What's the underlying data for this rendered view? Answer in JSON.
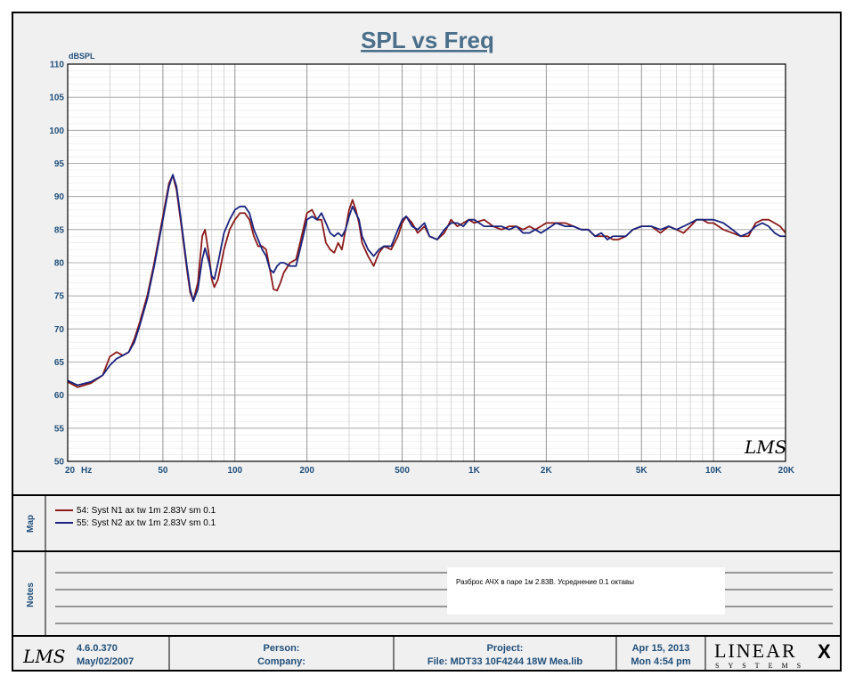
{
  "chart_data": {
    "type": "line",
    "title": "SPL vs Freq",
    "ylabel": "dBSPL",
    "xlabel": "Hz",
    "x_scale": "log",
    "xlim": [
      20,
      20000
    ],
    "ylim": [
      50,
      110
    ],
    "y_ticks": [
      50,
      55,
      60,
      65,
      70,
      75,
      80,
      85,
      90,
      95,
      100,
      105,
      110
    ],
    "x_ticks": [
      {
        "value": 20,
        "label": "20"
      },
      {
        "value": 50,
        "label": "50"
      },
      {
        "value": 100,
        "label": "100"
      },
      {
        "value": 200,
        "label": "200"
      },
      {
        "value": 500,
        "label": "500"
      },
      {
        "value": 1000,
        "label": "1K"
      },
      {
        "value": 2000,
        "label": "2K"
      },
      {
        "value": 5000,
        "label": "5K"
      },
      {
        "value": 10000,
        "label": "10K"
      },
      {
        "value": 20000,
        "label": "20K"
      }
    ],
    "grid": true,
    "legend_position": "bottom",
    "series": [
      {
        "name": "54: Syst N1 ax tw 1m 2.83V sm 0.1",
        "color": "#8b1a1a",
        "points": [
          [
            20,
            62.0
          ],
          [
            22,
            61.2
          ],
          [
            25,
            61.8
          ],
          [
            28,
            63.0
          ],
          [
            30,
            65.8
          ],
          [
            32,
            66.5
          ],
          [
            34,
            66.0
          ],
          [
            36,
            66.5
          ],
          [
            38,
            68.5
          ],
          [
            40,
            71.0
          ],
          [
            43,
            75.0
          ],
          [
            46,
            80.0
          ],
          [
            50,
            87.0
          ],
          [
            53,
            92.0
          ],
          [
            55,
            93.2
          ],
          [
            57,
            91.0
          ],
          [
            60,
            85.0
          ],
          [
            63,
            79.0
          ],
          [
            65,
            75.5
          ],
          [
            67,
            74.3
          ],
          [
            70,
            77.0
          ],
          [
            73,
            84.0
          ],
          [
            75,
            85.0
          ],
          [
            78,
            81.0
          ],
          [
            80,
            77.5
          ],
          [
            82,
            76.3
          ],
          [
            85,
            77.5
          ],
          [
            90,
            82.0
          ],
          [
            95,
            85.0
          ],
          [
            100,
            86.5
          ],
          [
            105,
            87.5
          ],
          [
            110,
            87.5
          ],
          [
            115,
            86.5
          ],
          [
            120,
            84.0
          ],
          [
            125,
            82.5
          ],
          [
            130,
            82.5
          ],
          [
            135,
            82.0
          ],
          [
            140,
            79.0
          ],
          [
            145,
            76.0
          ],
          [
            150,
            75.8
          ],
          [
            155,
            77.0
          ],
          [
            160,
            78.5
          ],
          [
            170,
            80.0
          ],
          [
            180,
            80.5
          ],
          [
            190,
            84.0
          ],
          [
            200,
            87.5
          ],
          [
            210,
            88.0
          ],
          [
            220,
            86.5
          ],
          [
            230,
            86.5
          ],
          [
            240,
            83.0
          ],
          [
            250,
            82.0
          ],
          [
            260,
            81.5
          ],
          [
            270,
            83.0
          ],
          [
            280,
            82.0
          ],
          [
            290,
            85.0
          ],
          [
            300,
            88.0
          ],
          [
            310,
            89.5
          ],
          [
            320,
            88.0
          ],
          [
            330,
            86.0
          ],
          [
            340,
            83.0
          ],
          [
            360,
            81.0
          ],
          [
            380,
            79.5
          ],
          [
            400,
            81.5
          ],
          [
            420,
            82.5
          ],
          [
            450,
            82.0
          ],
          [
            480,
            84.0
          ],
          [
            500,
            86.0
          ],
          [
            520,
            87.0
          ],
          [
            550,
            86.0
          ],
          [
            580,
            84.5
          ],
          [
            620,
            85.5
          ],
          [
            650,
            84.0
          ],
          [
            700,
            83.5
          ],
          [
            750,
            84.5
          ],
          [
            800,
            86.5
          ],
          [
            850,
            85.5
          ],
          [
            900,
            86.0
          ],
          [
            950,
            86.5
          ],
          [
            1000,
            86.0
          ],
          [
            1100,
            86.5
          ],
          [
            1200,
            85.5
          ],
          [
            1300,
            85.0
          ],
          [
            1400,
            85.5
          ],
          [
            1500,
            85.5
          ],
          [
            1600,
            85.0
          ],
          [
            1700,
            85.5
          ],
          [
            1800,
            85.0
          ],
          [
            1900,
            85.5
          ],
          [
            2000,
            86.0
          ],
          [
            2200,
            86.0
          ],
          [
            2400,
            86.0
          ],
          [
            2600,
            85.5
          ],
          [
            2800,
            85.0
          ],
          [
            3000,
            85.0
          ],
          [
            3200,
            84.0
          ],
          [
            3400,
            84.0
          ],
          [
            3600,
            84.0
          ],
          [
            3800,
            83.5
          ],
          [
            4000,
            83.5
          ],
          [
            4300,
            84.0
          ],
          [
            4600,
            85.0
          ],
          [
            5000,
            85.5
          ],
          [
            5500,
            85.5
          ],
          [
            6000,
            84.5
          ],
          [
            6500,
            85.5
          ],
          [
            7000,
            85.0
          ],
          [
            7500,
            84.5
          ],
          [
            8000,
            85.5
          ],
          [
            8500,
            86.5
          ],
          [
            9000,
            86.5
          ],
          [
            9500,
            86.0
          ],
          [
            10000,
            86.0
          ],
          [
            11000,
            85.0
          ],
          [
            12000,
            84.5
          ],
          [
            13000,
            84.0
          ],
          [
            14000,
            84.0
          ],
          [
            15000,
            86.0
          ],
          [
            16000,
            86.5
          ],
          [
            17000,
            86.5
          ],
          [
            18000,
            86.0
          ],
          [
            19000,
            85.5
          ],
          [
            20000,
            84.5
          ]
        ]
      },
      {
        "name": "55: Syst N2 ax tw 1m 2.83V sm 0.1",
        "color": "#1a237e",
        "points": [
          [
            20,
            62.2
          ],
          [
            22,
            61.5
          ],
          [
            25,
            62.0
          ],
          [
            28,
            63.0
          ],
          [
            30,
            64.5
          ],
          [
            32,
            65.5
          ],
          [
            34,
            66.0
          ],
          [
            36,
            66.5
          ],
          [
            38,
            68.0
          ],
          [
            40,
            70.5
          ],
          [
            43,
            74.5
          ],
          [
            46,
            79.5
          ],
          [
            50,
            86.5
          ],
          [
            53,
            91.5
          ],
          [
            55,
            93.3
          ],
          [
            57,
            91.5
          ],
          [
            60,
            85.5
          ],
          [
            63,
            79.5
          ],
          [
            65,
            76.0
          ],
          [
            67,
            74.2
          ],
          [
            70,
            76.0
          ],
          [
            73,
            80.5
          ],
          [
            75,
            82.2
          ],
          [
            78,
            80.0
          ],
          [
            80,
            78.0
          ],
          [
            82,
            77.5
          ],
          [
            85,
            80.0
          ],
          [
            90,
            84.5
          ],
          [
            95,
            86.5
          ],
          [
            100,
            88.0
          ],
          [
            105,
            88.5
          ],
          [
            110,
            88.5
          ],
          [
            115,
            87.5
          ],
          [
            120,
            85.0
          ],
          [
            125,
            83.5
          ],
          [
            130,
            82.0
          ],
          [
            135,
            81.0
          ],
          [
            140,
            79.0
          ],
          [
            145,
            78.5
          ],
          [
            150,
            79.5
          ],
          [
            155,
            80.0
          ],
          [
            160,
            80.0
          ],
          [
            170,
            79.5
          ],
          [
            180,
            79.5
          ],
          [
            190,
            83.0
          ],
          [
            200,
            86.5
          ],
          [
            210,
            87.0
          ],
          [
            220,
            86.5
          ],
          [
            230,
            87.5
          ],
          [
            240,
            86.0
          ],
          [
            250,
            84.5
          ],
          [
            260,
            84.0
          ],
          [
            270,
            84.5
          ],
          [
            280,
            84.0
          ],
          [
            290,
            85.0
          ],
          [
            300,
            87.0
          ],
          [
            310,
            88.5
          ],
          [
            320,
            87.5
          ],
          [
            330,
            86.5
          ],
          [
            340,
            84.0
          ],
          [
            360,
            82.0
          ],
          [
            380,
            81.0
          ],
          [
            400,
            82.0
          ],
          [
            420,
            82.5
          ],
          [
            450,
            82.5
          ],
          [
            480,
            85.0
          ],
          [
            500,
            86.5
          ],
          [
            520,
            87.0
          ],
          [
            550,
            85.5
          ],
          [
            580,
            85.0
          ],
          [
            620,
            86.0
          ],
          [
            650,
            84.0
          ],
          [
            700,
            83.5
          ],
          [
            750,
            85.0
          ],
          [
            800,
            86.0
          ],
          [
            850,
            86.0
          ],
          [
            900,
            85.5
          ],
          [
            950,
            86.5
          ],
          [
            1000,
            86.5
          ],
          [
            1100,
            85.5
          ],
          [
            1200,
            85.5
          ],
          [
            1300,
            85.5
          ],
          [
            1400,
            85.0
          ],
          [
            1500,
            85.5
          ],
          [
            1600,
            84.5
          ],
          [
            1700,
            84.5
          ],
          [
            1800,
            85.0
          ],
          [
            1900,
            84.5
          ],
          [
            2000,
            85.0
          ],
          [
            2200,
            86.0
          ],
          [
            2400,
            85.5
          ],
          [
            2600,
            85.5
          ],
          [
            2800,
            85.0
          ],
          [
            3000,
            85.0
          ],
          [
            3200,
            84.0
          ],
          [
            3400,
            84.5
          ],
          [
            3600,
            83.5
          ],
          [
            3800,
            84.0
          ],
          [
            4000,
            84.0
          ],
          [
            4300,
            84.0
          ],
          [
            4600,
            85.0
          ],
          [
            5000,
            85.5
          ],
          [
            5500,
            85.5
          ],
          [
            6000,
            85.0
          ],
          [
            6500,
            85.5
          ],
          [
            7000,
            85.0
          ],
          [
            7500,
            85.5
          ],
          [
            8000,
            86.0
          ],
          [
            8500,
            86.5
          ],
          [
            9000,
            86.5
          ],
          [
            9500,
            86.5
          ],
          [
            10000,
            86.5
          ],
          [
            11000,
            86.0
          ],
          [
            12000,
            85.0
          ],
          [
            13000,
            84.0
          ],
          [
            14000,
            84.5
          ],
          [
            15000,
            85.5
          ],
          [
            16000,
            86.0
          ],
          [
            17000,
            85.5
          ],
          [
            18000,
            84.5
          ],
          [
            19000,
            84.0
          ],
          [
            20000,
            84.0
          ]
        ]
      }
    ]
  },
  "map": {
    "label": "Map",
    "legend": [
      {
        "text": "54: Syst N1 ax tw 1m 2.83V sm 0.1",
        "color": "#8b1a1a"
      },
      {
        "text": "55: Syst N2 ax tw 1m 2.83V sm 0.1",
        "color": "#1a237e"
      }
    ]
  },
  "notes": {
    "label": "Notes",
    "text": "Разброс АЧХ в паре 1м 2.83В. Усреднение 0.1 октавы"
  },
  "footer": {
    "lms_logo": "LMS",
    "version": "4.6.0.370",
    "version_date": "May/02/2007",
    "person_label": "Person:",
    "company_label": "Company:",
    "project_label": "Project:",
    "file_label": "File: MDT33 10F4244 18W Mea.lib",
    "date": "Apr 15, 2013",
    "time": "Mon  4:54 pm",
    "linear_logo": "LINEAR",
    "linear_x": "X",
    "systems_logo": "SYSTEMS"
  },
  "watermark": "LMS"
}
